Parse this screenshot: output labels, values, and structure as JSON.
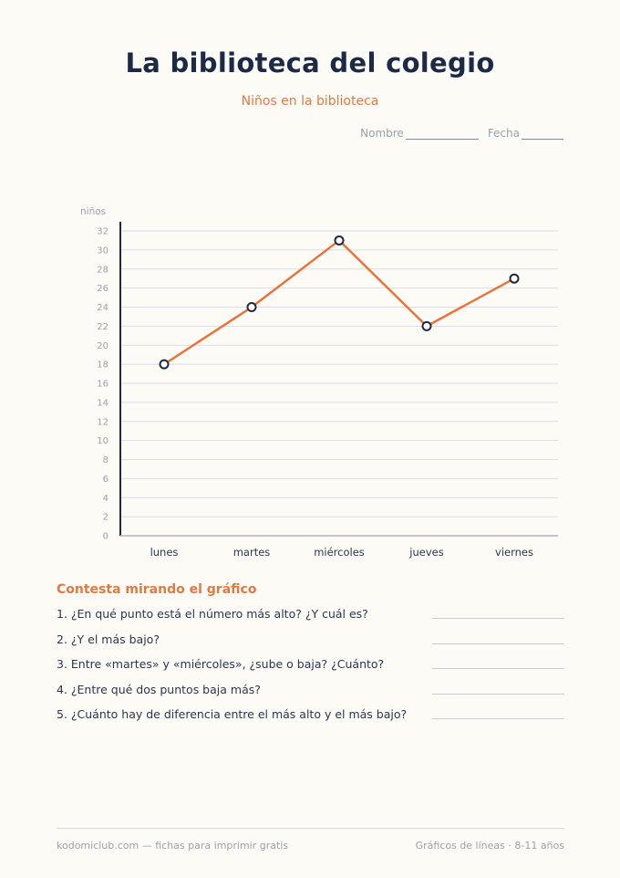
{
  "header": {
    "title": "La biblioteca del colegio",
    "subtitle": "Niños en la biblioteca",
    "name_label": "Nombre",
    "date_label": "Fecha"
  },
  "chart_data": {
    "type": "line",
    "ylabel": "niños",
    "categories": [
      "lunes",
      "martes",
      "miércoles",
      "jueves",
      "viernes"
    ],
    "series": [
      {
        "values": [
          18,
          24,
          31,
          22,
          27
        ]
      }
    ],
    "ylim": [
      0,
      32
    ],
    "yticks": [
      0,
      2,
      4,
      6,
      8,
      10,
      12,
      14,
      16,
      18,
      20,
      22,
      24,
      26,
      28,
      30,
      32
    ],
    "grid": true,
    "colors": {
      "line": "#e8743b",
      "marker_stroke": "#1e2a44",
      "grid": "#d9dde8",
      "axis": "#1e2a44"
    }
  },
  "questions": {
    "title": "Contesta mirando el gráfico",
    "items": [
      "1. ¿En qué punto está el número más alto? ¿Y cuál es?",
      "2. ¿Y el más bajo?",
      "3. Entre «martes» y «miércoles», ¿sube o baja? ¿Cuánto?",
      "4. ¿Entre qué dos puntos baja más?",
      "5. ¿Cuánto hay de diferencia entre el más alto y el más bajo?"
    ]
  },
  "footer": {
    "left": "kodomiclub.com — fichas para imprimir gratis",
    "right": "Gráficos de líneas · 8-11 años"
  }
}
